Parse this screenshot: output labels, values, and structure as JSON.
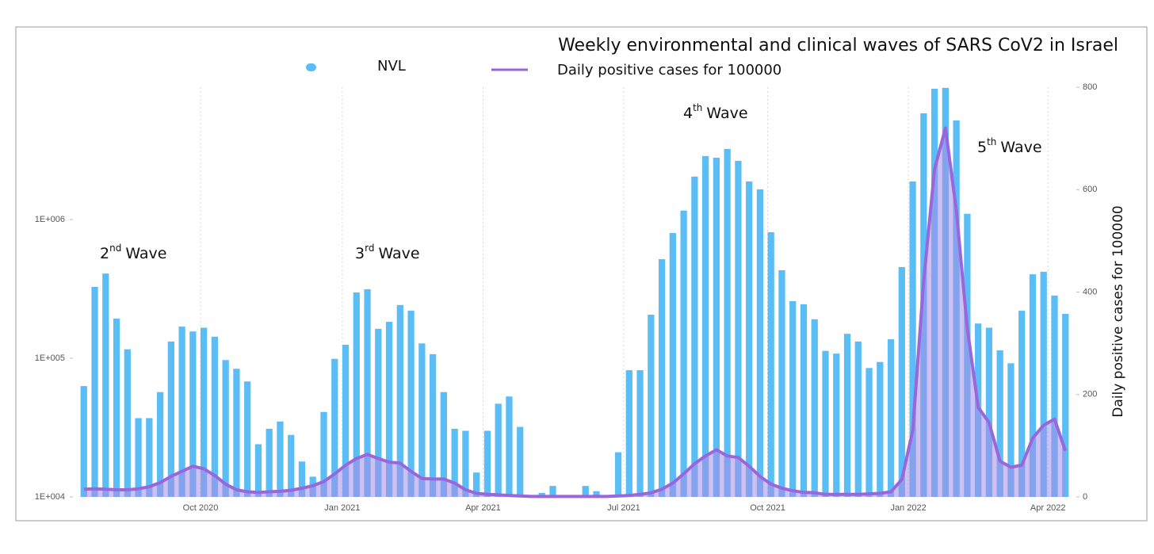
{
  "chart_data": {
    "type": "bar-line",
    "title": "Weekly environmental and clinical waves of SARS CoV2 in Israel",
    "y2_label": "Daily positive cases for 100000",
    "categories": [
      null,
      null,
      null,
      null,
      null,
      null,
      null,
      null,
      null,
      null,
      null,
      null,
      null,
      null,
      null,
      null,
      null,
      null,
      null,
      null,
      null,
      null,
      null,
      null,
      null,
      null,
      null,
      null,
      null,
      null,
      null,
      null,
      null,
      null,
      null,
      null,
      null,
      null,
      null,
      null,
      null,
      null,
      null,
      null,
      null,
      null,
      null,
      null,
      null,
      null,
      null,
      null,
      null,
      null,
      null,
      null,
      null,
      null,
      null,
      null,
      null,
      null,
      null,
      null,
      null,
      null,
      null,
      null,
      null,
      null,
      null,
      null,
      null,
      null,
      null,
      null,
      null,
      null,
      null,
      null,
      null,
      null,
      null,
      null,
      null,
      null,
      null,
      null,
      null,
      null,
      null
    ],
    "series": [
      {
        "name": "NVL",
        "color": "#5bbdf5",
        "values": [
          63000,
          327000,
          408000,
          193000,
          116000,
          37000,
          37000,
          57000,
          132000,
          169000,
          156000,
          166000,
          143000,
          97000,
          84000,
          68000,
          24000,
          31000,
          35000,
          28000,
          18000,
          14000,
          41000,
          99000,
          125000,
          298000,
          314000,
          163000,
          183000,
          242000,
          220000,
          128000,
          107000,
          57000,
          31000,
          30000,
          15000,
          30000,
          47000,
          53000,
          32000,
          null,
          10700,
          12000,
          null,
          null,
          12000,
          11000,
          null,
          21000,
          82000,
          82000,
          206000,
          518000,
          800000,
          1160000,
          2040000,
          2870000,
          2790000,
          3230000,
          2650000,
          1880000,
          1650000,
          810000,
          431000,
          258000,
          245000,
          191000,
          113000,
          108000,
          150000,
          132000,
          85000,
          94000,
          137000,
          454000,
          1880000,
          5830000,
          8770000,
          8900000,
          5180000,
          1100000,
          178000,
          166000,
          114000,
          92000,
          220000,
          403000,
          420000,
          283000,
          209000
        ]
      },
      {
        "name": "Daily positive cases for 100000",
        "color": "#9a66dc",
        "axis": "y2",
        "values": [
          15,
          16,
          15,
          14,
          14,
          16,
          20,
          28,
          40,
          50,
          60,
          55,
          42,
          25,
          14,
          10,
          9,
          10,
          11,
          13,
          17,
          22,
          30,
          45,
          62,
          75,
          83,
          75,
          68,
          66,
          50,
          36,
          35,
          35,
          27,
          14,
          7,
          5,
          4,
          3,
          2,
          1,
          1,
          1,
          1,
          1,
          1,
          1,
          1,
          2,
          3,
          5,
          8,
          15,
          27,
          45,
          65,
          80,
          92,
          80,
          77,
          60,
          40,
          25,
          17,
          12,
          9,
          8,
          5,
          5,
          5,
          5,
          6,
          7,
          10,
          34,
          130,
          420,
          640,
          720,
          560,
          330,
          175,
          145,
          70,
          58,
          62,
          115,
          140,
          152,
          90
        ]
      }
    ],
    "xlim": [
      -1,
      91
    ],
    "xticks": [
      {
        "value": 10.7,
        "label": "Oct 2020"
      },
      {
        "value": 23.7,
        "label": "Jan 2021"
      },
      {
        "value": 36.6,
        "label": "Apr 2021"
      },
      {
        "value": 49.5,
        "label": "Jul 2021"
      },
      {
        "value": 62.7,
        "label": "Oct 2021"
      },
      {
        "value": 75.6,
        "label": "Jan 2022"
      },
      {
        "value": 88.4,
        "label": "Apr 2022"
      }
    ],
    "ylim": [
      10000,
      9000000
    ],
    "ylog": true,
    "yticks": [
      {
        "value": 10000,
        "label": "1E+004"
      },
      {
        "value": 100000,
        "label": "1E+005"
      },
      {
        "value": 1000000,
        "label": "1E+006"
      }
    ],
    "y2lim": [
      0,
      800
    ],
    "y2ticks": [
      0,
      200,
      400,
      600,
      800
    ],
    "grid": "x",
    "area_color": "#a58ee8",
    "annotations": [
      {
        "number": "2",
        "ordinal": "nd",
        "text": "Wave"
      },
      {
        "number": "3",
        "ordinal": "rd",
        "text": "Wave"
      },
      {
        "number": "4",
        "ordinal": "th",
        "text": "Wave"
      },
      {
        "number": "5",
        "ordinal": "th",
        "text": "Wave"
      }
    ]
  }
}
